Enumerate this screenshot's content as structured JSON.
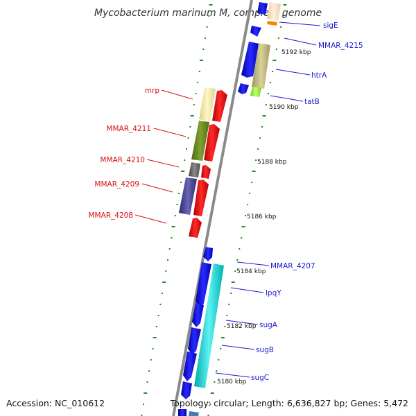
{
  "title": "Mycobacterium marinum M, complete genome",
  "footer": {
    "accession": "Accession: NC_010612",
    "topology": "Topology: circular; Length: 6,636,827 bp; Genes: 5,472"
  },
  "colors": {
    "forward_strand": "#0000ee",
    "reverse_strand": "#ee0000",
    "backbone": "#808080",
    "tick_marks": "#228b22"
  },
  "kbp_labels": [
    "5192 kbp",
    "5190 kbp",
    "5188 kbp",
    "5186 kbp",
    "5184 kbp",
    "5182 kbp",
    "5180 kbp"
  ],
  "gene_labels": {
    "right": [
      "sigE",
      "MMAR_4215",
      "htrA",
      "tatB",
      "MMAR_4207",
      "lpqY",
      "sugA",
      "sugB",
      "sugC"
    ],
    "left": [
      "mrp",
      "MMAR_4211",
      "MMAR_4210",
      "MMAR_4209",
      "MMAR_4208"
    ]
  }
}
